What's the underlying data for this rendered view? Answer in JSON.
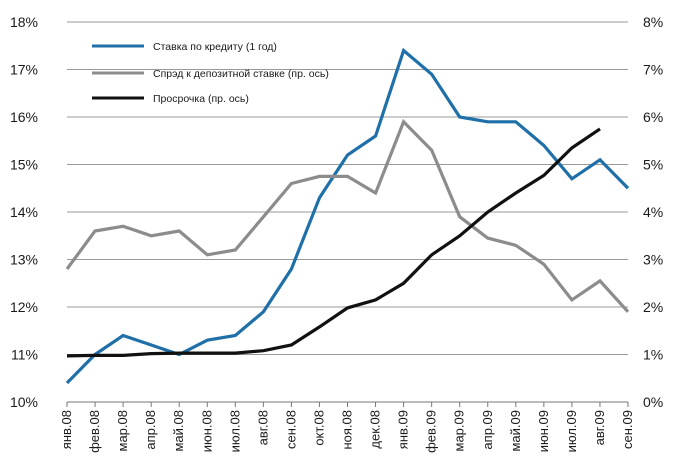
{
  "chart_data": {
    "type": "line",
    "title": "",
    "xlabel": "",
    "ylabel": "",
    "categories": [
      "янв.08",
      "фев.08",
      "мар.08",
      "апр.08",
      "май.08",
      "июн.08",
      "июл.08",
      "авг.08",
      "сен.08",
      "окт.08",
      "ноя.08",
      "дек.08",
      "янв.09",
      "фев.09",
      "мар.09",
      "апр.09",
      "май.09",
      "июн.09",
      "июл.09",
      "авг.09",
      "сен.09"
    ],
    "y_left": {
      "lim": [
        10,
        18
      ],
      "ticks": [
        10,
        11,
        12,
        13,
        14,
        15,
        16,
        17,
        18
      ],
      "tick_labels": [
        "10%",
        "11%",
        "12%",
        "13%",
        "14%",
        "15%",
        "16%",
        "17%",
        "18%"
      ]
    },
    "y_right": {
      "lim": [
        0,
        8
      ],
      "ticks": [
        0,
        1,
        2,
        3,
        4,
        5,
        6,
        7,
        8
      ],
      "tick_labels": [
        "0%",
        "1%",
        "2%",
        "3%",
        "4%",
        "5%",
        "6%",
        "7%",
        "8%"
      ]
    },
    "grid": true,
    "legend_position": "top-left",
    "series": [
      {
        "name": "Ставка по кредиту (1 год)",
        "axis": "left",
        "color": "#1f6fa8",
        "values": [
          10.4,
          11.0,
          11.4,
          11.2,
          11.0,
          11.3,
          11.4,
          11.9,
          12.8,
          14.3,
          15.2,
          15.6,
          17.4,
          16.9,
          16.0,
          15.9,
          15.9,
          15.4,
          14.7,
          15.1,
          14.5
        ]
      },
      {
        "name": "Спрэд к депозитной ставке (пр. ось)",
        "axis": "right",
        "color": "#8c8c8c",
        "values": [
          2.8,
          3.6,
          3.7,
          3.5,
          3.6,
          3.1,
          3.2,
          3.9,
          4.6,
          4.75,
          4.75,
          4.4,
          5.9,
          5.3,
          3.9,
          3.45,
          3.3,
          2.9,
          2.15,
          2.55,
          1.9
        ]
      },
      {
        "name": "Просрочка (пр. ось)",
        "axis": "right",
        "color": "#111111",
        "values": [
          0.97,
          0.98,
          0.98,
          1.02,
          1.03,
          1.03,
          1.03,
          1.08,
          1.2,
          1.58,
          1.98,
          2.15,
          2.5,
          3.1,
          3.5,
          4.0,
          4.4,
          4.77,
          5.35,
          5.75,
          null
        ]
      }
    ]
  }
}
